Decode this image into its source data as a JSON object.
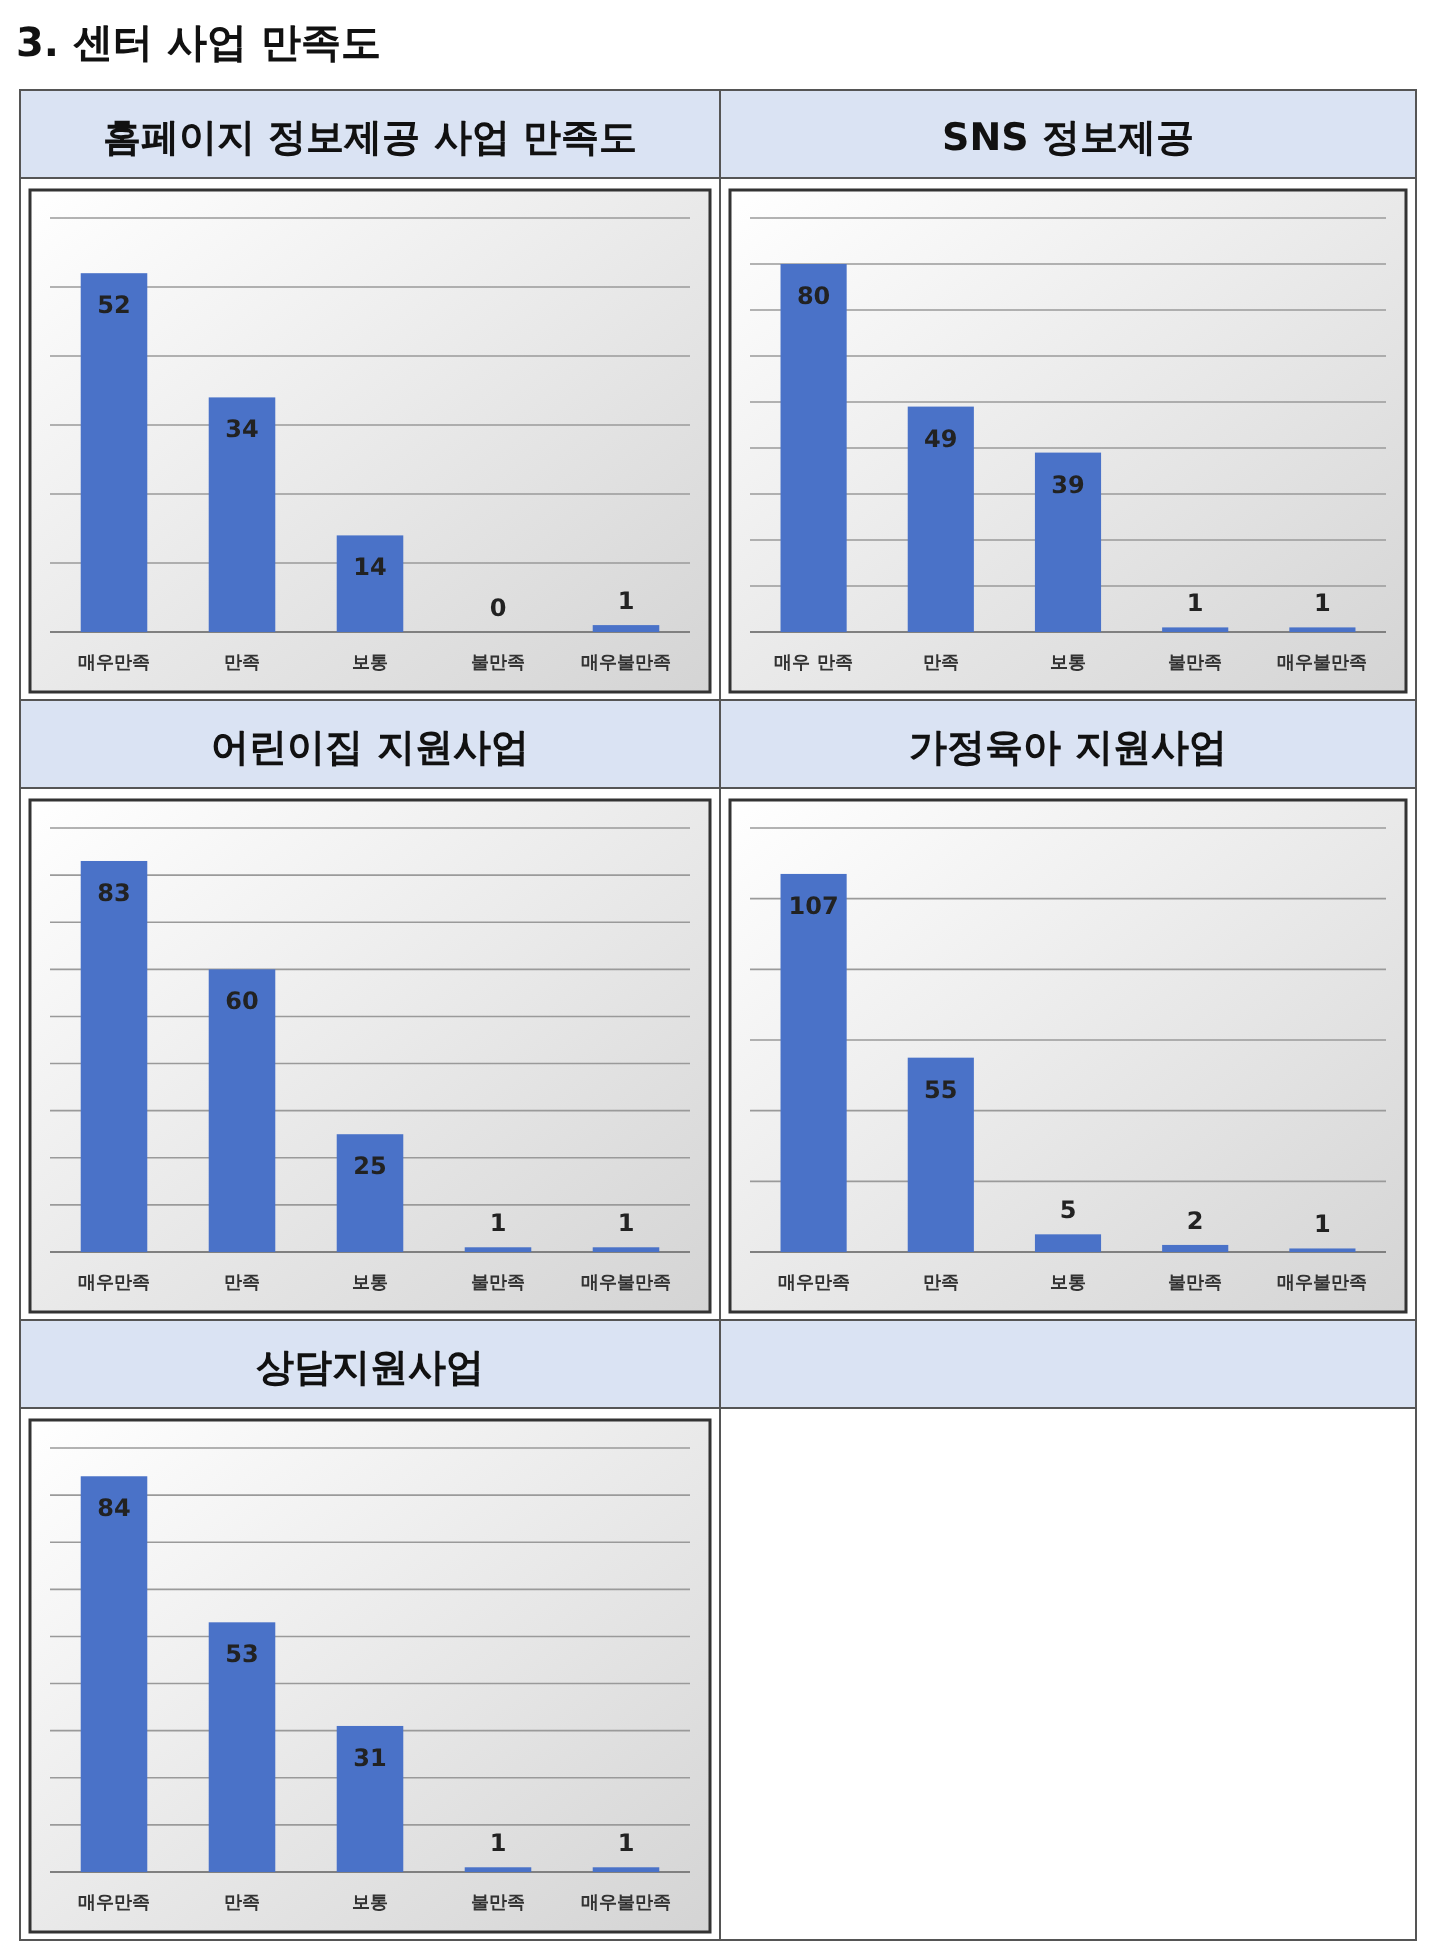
{
  "chart_data": [
    {
      "type": "bar",
      "title": "홈페이지 정보제공 사업 만족도",
      "annotations": [
        "3. 센터 사업 만족도"
      ],
      "categories": [
        "매우만족",
        "만족",
        "보통",
        "불만족",
        "매우불만족"
      ],
      "values": [
        52,
        34,
        14,
        0,
        1
      ],
      "color": "#4a72c8",
      "ylim": [
        0,
        60
      ],
      "yticks": [
        {
          "value": 0,
          "label": null
        },
        {
          "value": 10,
          "label": null
        },
        {
          "value": 20,
          "label": null
        },
        {
          "value": 30,
          "label": null
        },
        {
          "value": 40,
          "label": null
        },
        {
          "value": 50,
          "label": null
        },
        {
          "value": 60,
          "label": null
        }
      ],
      "grid": true,
      "data_labels": true
    },
    {
      "type": "bar",
      "title": "SNS 정보제공",
      "categories": [
        "매우 만족",
        "만족",
        "보통",
        "불만족",
        "매우불만족"
      ],
      "values": [
        80,
        49,
        39,
        1,
        1
      ],
      "color": "#4a72c8",
      "ylim": [
        0,
        90
      ],
      "yticks": [
        {
          "value": 0,
          "label": null
        },
        {
          "value": 10,
          "label": null
        },
        {
          "value": 20,
          "label": null
        },
        {
          "value": 30,
          "label": null
        },
        {
          "value": 40,
          "label": null
        },
        {
          "value": 50,
          "label": null
        },
        {
          "value": 60,
          "label": null
        },
        {
          "value": 70,
          "label": null
        },
        {
          "value": 80,
          "label": null
        },
        {
          "value": 90,
          "label": null
        }
      ],
      "grid": true,
      "data_labels": true
    },
    {
      "type": "bar",
      "title": "어린이집 지원사업",
      "categories": [
        "매우만족",
        "만족",
        "보통",
        "불만족",
        "매우불만족"
      ],
      "values": [
        83,
        60,
        25,
        1,
        1
      ],
      "color": "#4a72c8",
      "ylim": [
        0,
        90
      ],
      "yticks": [
        {
          "value": 0,
          "label": null
        },
        {
          "value": 10,
          "label": null
        },
        {
          "value": 20,
          "label": null
        },
        {
          "value": 30,
          "label": null
        },
        {
          "value": 40,
          "label": null
        },
        {
          "value": 50,
          "label": null
        },
        {
          "value": 60,
          "label": null
        },
        {
          "value": 70,
          "label": null
        },
        {
          "value": 80,
          "label": null
        },
        {
          "value": 90,
          "label": null
        }
      ],
      "grid": true,
      "data_labels": true
    },
    {
      "type": "bar",
      "title": "가정육아 지원사업",
      "categories": [
        "매우만족",
        "만족",
        "보통",
        "불만족",
        "매우불만족"
      ],
      "values": [
        107,
        55,
        5,
        2,
        1
      ],
      "color": "#4a72c8",
      "ylim": [
        0,
        120
      ],
      "yticks": [
        {
          "value": 0,
          "label": null
        },
        {
          "value": 20,
          "label": null
        },
        {
          "value": 40,
          "label": null
        },
        {
          "value": 60,
          "label": null
        },
        {
          "value": 80,
          "label": null
        },
        {
          "value": 100,
          "label": null
        },
        {
          "value": 120,
          "label": null
        }
      ],
      "grid": true,
      "data_labels": true
    },
    {
      "type": "bar",
      "title": "상담지원사업",
      "categories": [
        "매우만족",
        "만족",
        "보통",
        "불만족",
        "매우불만족"
      ],
      "values": [
        84,
        53,
        31,
        1,
        1
      ],
      "color": "#4a72c8",
      "ylim": [
        0,
        90
      ],
      "yticks": [
        {
          "value": 0,
          "label": null
        },
        {
          "value": 10,
          "label": null
        },
        {
          "value": 20,
          "label": null
        },
        {
          "value": 30,
          "label": null
        },
        {
          "value": 40,
          "label": null
        },
        {
          "value": 50,
          "label": null
        },
        {
          "value": 60,
          "label": null
        },
        {
          "value": 70,
          "label": null
        },
        {
          "value": 80,
          "label": null
        },
        {
          "value": 90,
          "label": null
        }
      ],
      "grid": true,
      "data_labels": true
    }
  ]
}
